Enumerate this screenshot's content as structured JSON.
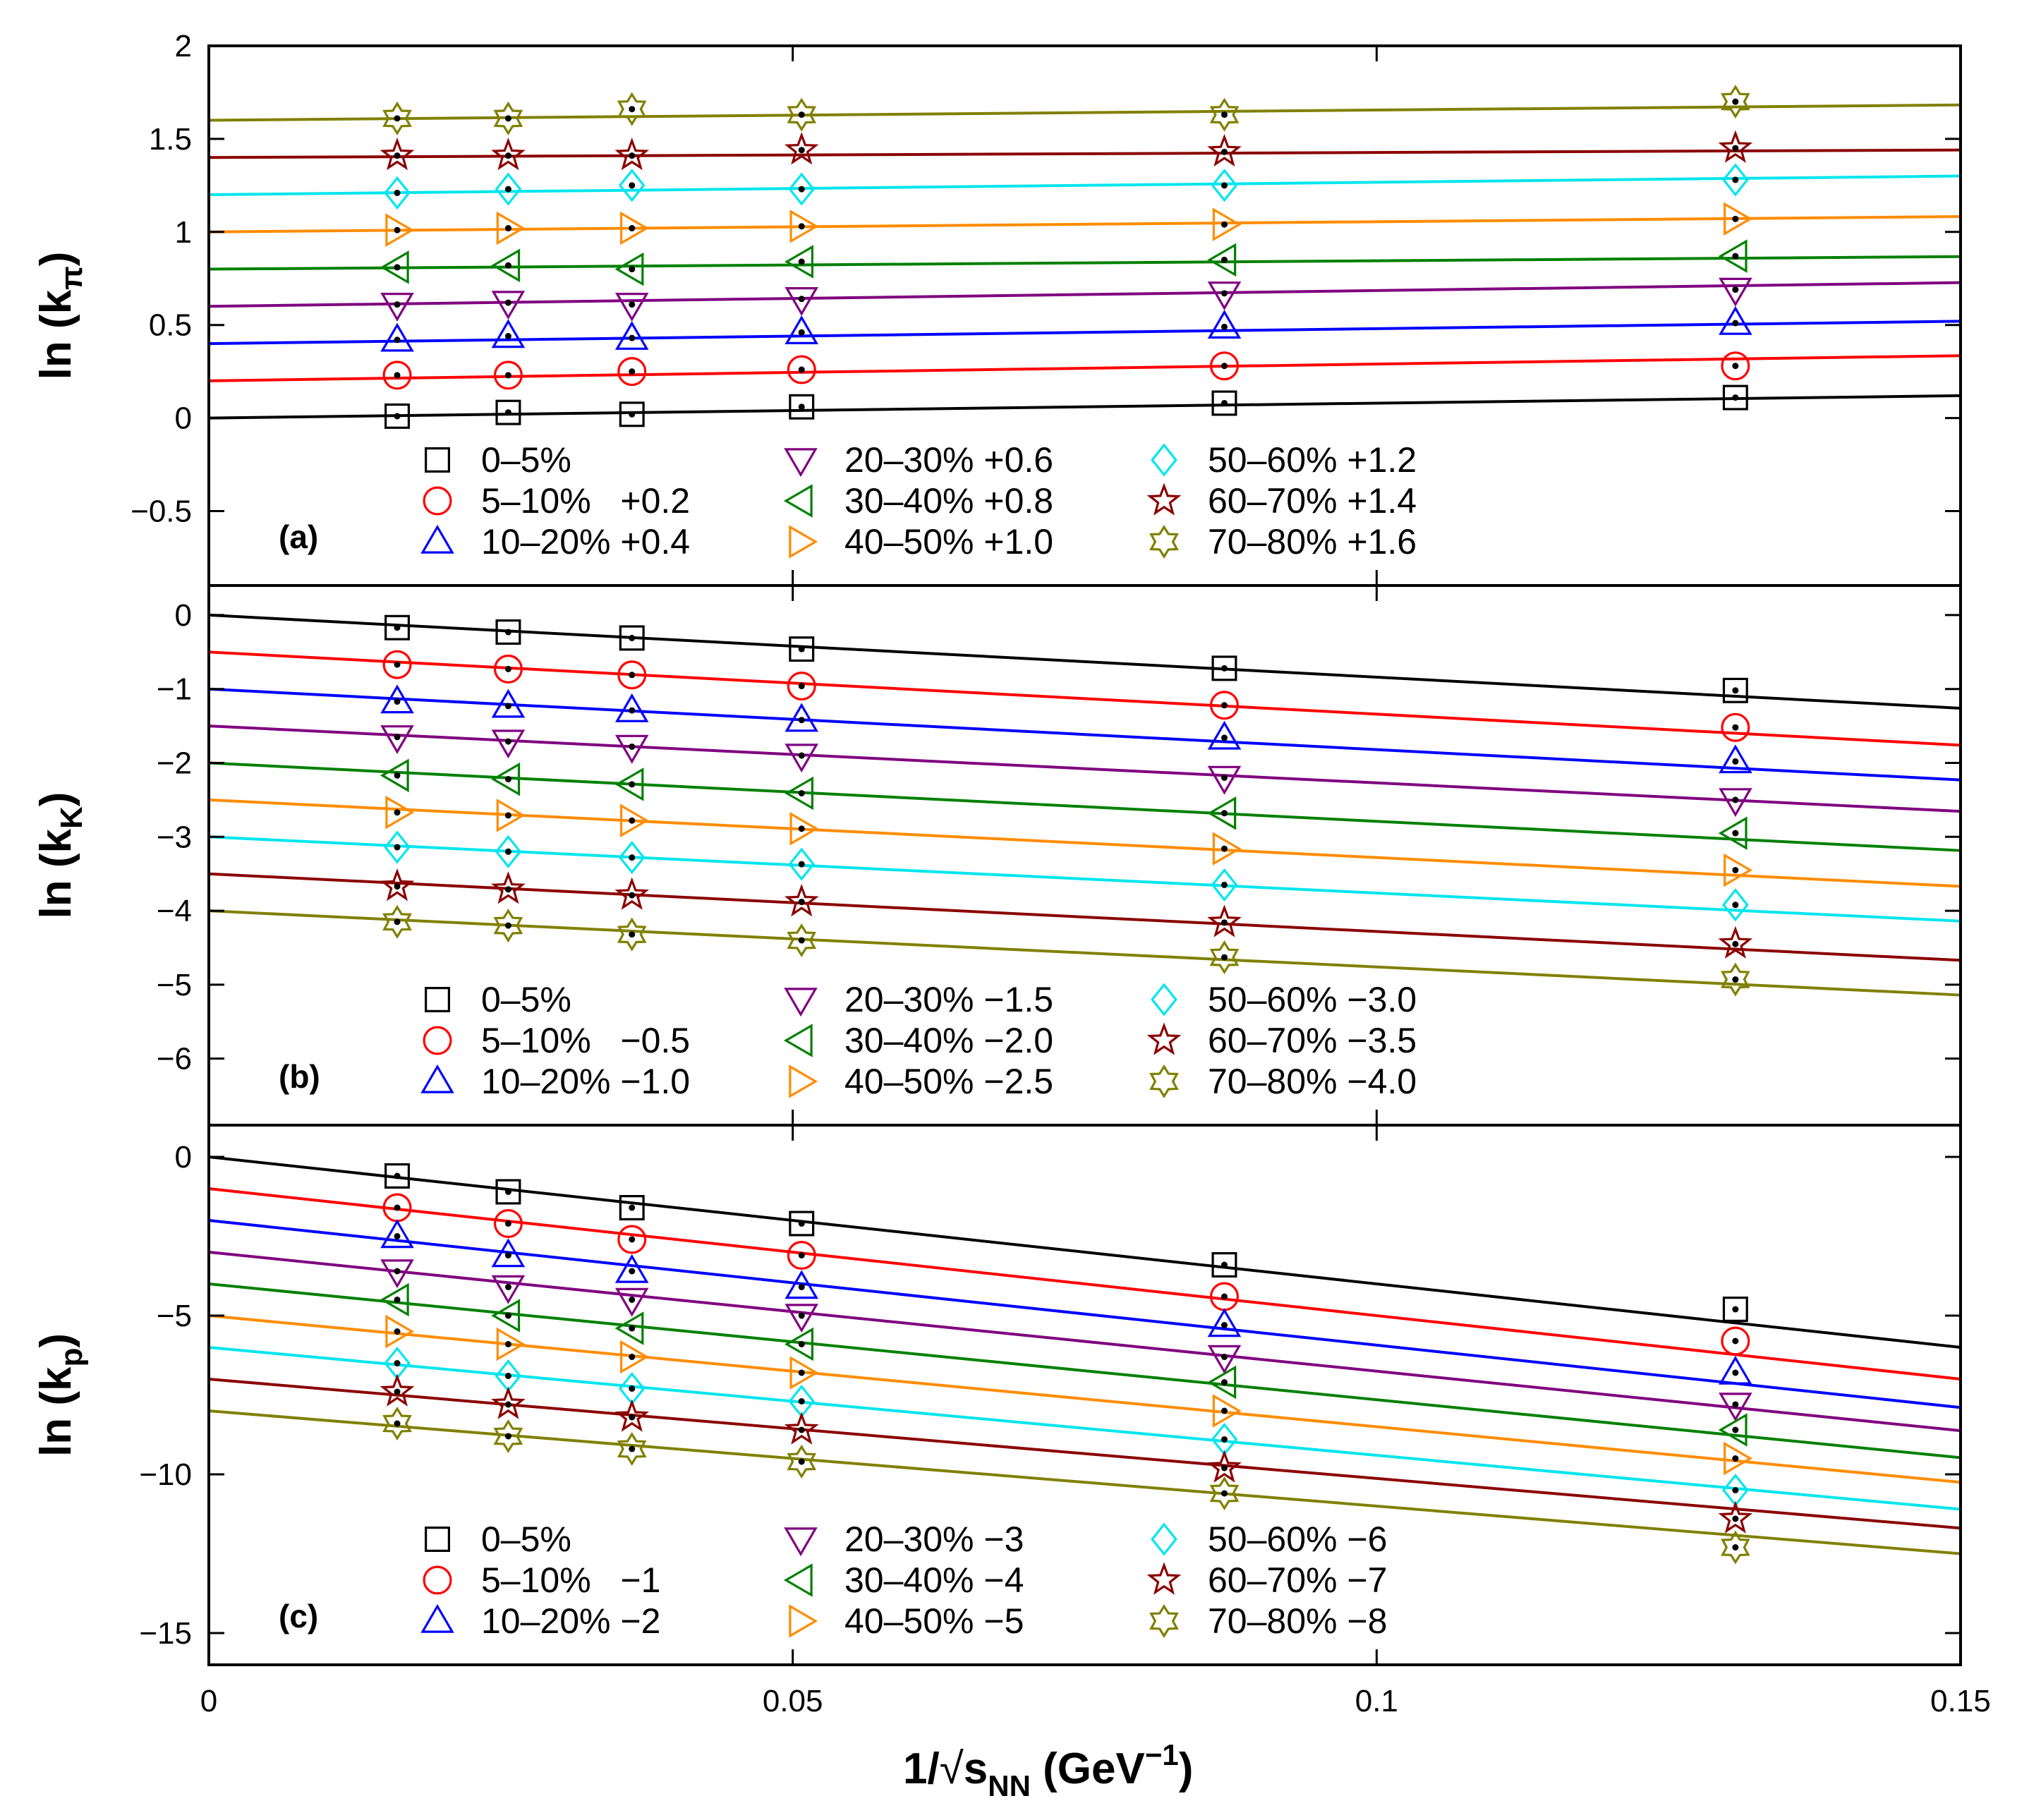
{
  "chart_data": {
    "type": "scatter",
    "title": "",
    "xlabel": "1/√s_NN (GeV⁻¹)",
    "xlabel_parts": {
      "pre": "1/",
      "s": "s",
      "sub": "NN",
      "unit_pre": " (GeV",
      "sup": "−1",
      "unit_post": ")"
    },
    "xlim": [
      0,
      0.15
    ],
    "xticks": [
      0,
      0.05,
      0.1,
      0.15
    ],
    "xtick_labels": [
      "0",
      "0.05",
      "0.1",
      "0.15"
    ],
    "x": [
      0.01613,
      0.02564,
      0.03623,
      0.05076,
      0.08696,
      0.13072
    ],
    "series_styles": [
      {
        "centrality": "0-5%",
        "color": "#000000",
        "marker": "square"
      },
      {
        "centrality": "5-10%",
        "color": "#ff0000",
        "marker": "circle"
      },
      {
        "centrality": "10-20%",
        "color": "#0000ff",
        "marker": "triangle-up"
      },
      {
        "centrality": "20-30%",
        "color": "#800080",
        "marker": "triangle-down"
      },
      {
        "centrality": "30-40%",
        "color": "#008000",
        "marker": "triangle-left"
      },
      {
        "centrality": "40-50%",
        "color": "#ff8c00",
        "marker": "triangle-right"
      },
      {
        "centrality": "50-60%",
        "color": "#00e5ee",
        "marker": "diamond"
      },
      {
        "centrality": "60-70%",
        "color": "#8b0000",
        "marker": "star"
      },
      {
        "centrality": "70-80%",
        "color": "#808000",
        "marker": "hexagram"
      }
    ],
    "panels": [
      {
        "tag": "(a)",
        "ylabel": {
          "pre": "ln (k",
          "sub": "π",
          "post": ")"
        },
        "ylim": [
          -0.9,
          2.0
        ],
        "yticks": [
          -0.5,
          0,
          0.5,
          1,
          1.5,
          2
        ],
        "ytick_labels": [
          "−0.5",
          "0",
          "0.5",
          "1",
          "1.5",
          "2"
        ],
        "series": [
          {
            "name": "0–5%",
            "label": "0–5%",
            "offset": 0.0,
            "fit": [
              0.0,
              0.8
            ],
            "values": [
              0.01,
              0.03,
              0.02,
              0.06,
              0.08,
              0.11
            ]
          },
          {
            "name": "5–10%",
            "label": "5–10%   +0.2",
            "offset": 0.2,
            "fit": [
              0.2,
              0.9
            ],
            "values": [
              0.23,
              0.23,
              0.25,
              0.26,
              0.28,
              0.28
            ]
          },
          {
            "name": "10–20%",
            "label": "10–20% +0.4",
            "offset": 0.4,
            "fit": [
              0.4,
              0.8
            ],
            "values": [
              0.42,
              0.44,
              0.43,
              0.46,
              0.49,
              0.51
            ]
          },
          {
            "name": "20–30%",
            "label": "20–30% +0.6",
            "offset": 0.6,
            "fit": [
              0.6,
              0.85
            ],
            "values": [
              0.61,
              0.62,
              0.61,
              0.64,
              0.67,
              0.69
            ]
          },
          {
            "name": "30–40%",
            "label": "30–40% +0.8",
            "offset": 0.8,
            "fit": [
              0.8,
              0.45
            ],
            "values": [
              0.81,
              0.82,
              0.8,
              0.84,
              0.85,
              0.87
            ]
          },
          {
            "name": "40–50%",
            "label": "40–50% +1.0",
            "offset": 1.0,
            "fit": [
              1.0,
              0.55
            ],
            "values": [
              1.01,
              1.02,
              1.02,
              1.03,
              1.04,
              1.07
            ]
          },
          {
            "name": "50–60%",
            "label": "50–60% +1.2",
            "offset": 1.2,
            "fit": [
              1.2,
              0.67
            ],
            "values": [
              1.21,
              1.23,
              1.25,
              1.23,
              1.25,
              1.28
            ]
          },
          {
            "name": "60–70%",
            "label": "60–70% +1.4",
            "offset": 1.4,
            "fit": [
              1.4,
              0.27
            ],
            "values": [
              1.41,
              1.41,
              1.41,
              1.44,
              1.43,
              1.45
            ]
          },
          {
            "name": "70–80%",
            "label": "70–80% +1.6",
            "offset": 1.6,
            "fit": [
              1.6,
              0.55
            ],
            "values": [
              1.61,
              1.61,
              1.66,
              1.63,
              1.63,
              1.7
            ]
          }
        ]
      },
      {
        "tag": "(b)",
        "ylabel": {
          "pre": "ln (k",
          "sub": "K",
          "post": ")"
        },
        "ylim": [
          -6.9,
          0.4
        ],
        "yticks": [
          -6,
          -5,
          -4,
          -3,
          -2,
          -1,
          0
        ],
        "ytick_labels": [
          "−6",
          "−5",
          "−4",
          "−3",
          "−2",
          "−1",
          "0"
        ],
        "series": [
          {
            "name": "0–5%",
            "label": "0–5%",
            "offset": 0.0,
            "fit": [
              0.0,
              -8.4
            ],
            "values": [
              -0.17,
              -0.23,
              -0.31,
              -0.46,
              -0.72,
              -1.02
            ]
          },
          {
            "name": "5–10%",
            "label": "5–10%   −0.5",
            "offset": -0.5,
            "fit": [
              -0.5,
              -8.4
            ],
            "values": [
              -0.67,
              -0.73,
              -0.81,
              -0.96,
              -1.22,
              -1.52
            ]
          },
          {
            "name": "10–20%",
            "label": "10–20% −1.0",
            "offset": -1.0,
            "fit": [
              -1.0,
              -8.2
            ],
            "values": [
              -1.17,
              -1.23,
              -1.29,
              -1.42,
              -1.66,
              -1.98
            ]
          },
          {
            "name": "20–30%",
            "label": "20–30% −1.5",
            "offset": -1.5,
            "fit": [
              -1.5,
              -7.7
            ],
            "values": [
              -1.65,
              -1.71,
              -1.78,
              -1.9,
              -2.2,
              -2.5
            ]
          },
          {
            "name": "30–40%",
            "label": "30–40% −2.0",
            "offset": -2.0,
            "fit": [
              -2.0,
              -7.9
            ],
            "values": [
              -2.17,
              -2.22,
              -2.29,
              -2.41,
              -2.68,
              -2.95
            ]
          },
          {
            "name": "40–50%",
            "label": "40–50% −2.5",
            "offset": -2.5,
            "fit": [
              -2.5,
              -7.8
            ],
            "values": [
              -2.67,
              -2.71,
              -2.78,
              -2.89,
              -3.16,
              -3.45
            ]
          },
          {
            "name": "50–60%",
            "label": "50–60% −3.0",
            "offset": -3.0,
            "fit": [
              -3.0,
              -7.6
            ],
            "values": [
              -3.14,
              -3.2,
              -3.28,
              -3.37,
              -3.65,
              -3.92
            ]
          },
          {
            "name": "60–70%",
            "label": "60–70% −3.5",
            "offset": -3.5,
            "fit": [
              -3.5,
              -7.8
            ],
            "values": [
              -3.67,
              -3.71,
              -3.79,
              -3.88,
              -4.16,
              -4.45
            ]
          },
          {
            "name": "70–80%",
            "label": "70–80% −4.0",
            "offset": -4.0,
            "fit": [
              -4.0,
              -7.6
            ],
            "values": [
              -4.15,
              -4.2,
              -4.32,
              -4.4,
              -4.63,
              -4.93
            ]
          }
        ]
      },
      {
        "tag": "(c)",
        "ylabel": {
          "pre": "ln (k",
          "sub": "p",
          "post": ")"
        },
        "ylim": [
          -16.0,
          1.0
        ],
        "yticks": [
          -15,
          -10,
          -5,
          0
        ],
        "ytick_labels": [
          "−15",
          "−10",
          "−5",
          "0"
        ],
        "series": [
          {
            "name": "0–5%",
            "label": "0–5%",
            "offset": 0.0,
            "fit": [
              0.0,
              -40.0
            ],
            "values": [
              -0.6,
              -1.1,
              -1.6,
              -2.1,
              -3.4,
              -4.8
            ]
          },
          {
            "name": "5–10%",
            "label": "5–10%   −1",
            "offset": -1.0,
            "fit": [
              -1.0,
              -40.0
            ],
            "values": [
              -1.6,
              -2.1,
              -2.6,
              -3.1,
              -4.4,
              -5.8
            ]
          },
          {
            "name": "10–20%",
            "label": "10–20% −2",
            "offset": -2.0,
            "fit": [
              -2.0,
              -39.3
            ],
            "values": [
              -2.5,
              -3.1,
              -3.6,
              -4.1,
              -5.3,
              -6.8
            ]
          },
          {
            "name": "20–30%",
            "label": "20–30% −3",
            "offset": -3.0,
            "fit": [
              -3.0,
              -37.5
            ],
            "values": [
              -3.6,
              -4.1,
              -4.5,
              -5.0,
              -6.3,
              -7.8
            ]
          },
          {
            "name": "30–40%",
            "label": "30–40% −4",
            "offset": -4.0,
            "fit": [
              -4.0,
              -36.5
            ],
            "values": [
              -4.5,
              -5.0,
              -5.4,
              -5.9,
              -7.1,
              -8.6
            ]
          },
          {
            "name": "40–50%",
            "label": "40–50% −5",
            "offset": -5.0,
            "fit": [
              -5.0,
              -35.0
            ],
            "values": [
              -5.5,
              -5.9,
              -6.3,
              -6.8,
              -8.0,
              -9.5
            ]
          },
          {
            "name": "50–60%",
            "label": "50–60% −6",
            "offset": -6.0,
            "fit": [
              -6.0,
              -34.0
            ],
            "values": [
              -6.5,
              -6.9,
              -7.3,
              -7.7,
              -8.9,
              -10.5
            ]
          },
          {
            "name": "60–70%",
            "label": "60–70% −7",
            "offset": -7.0,
            "fit": [
              -7.0,
              -31.3
            ],
            "values": [
              -7.4,
              -7.8,
              -8.2,
              -8.6,
              -9.8,
              -11.4
            ]
          },
          {
            "name": "70–80%",
            "label": "70–80% −8",
            "offset": -8.0,
            "fit": [
              -8.0,
              -30.0
            ],
            "values": [
              -8.4,
              -8.8,
              -9.2,
              -9.6,
              -10.6,
              -12.3
            ]
          }
        ]
      }
    ]
  }
}
